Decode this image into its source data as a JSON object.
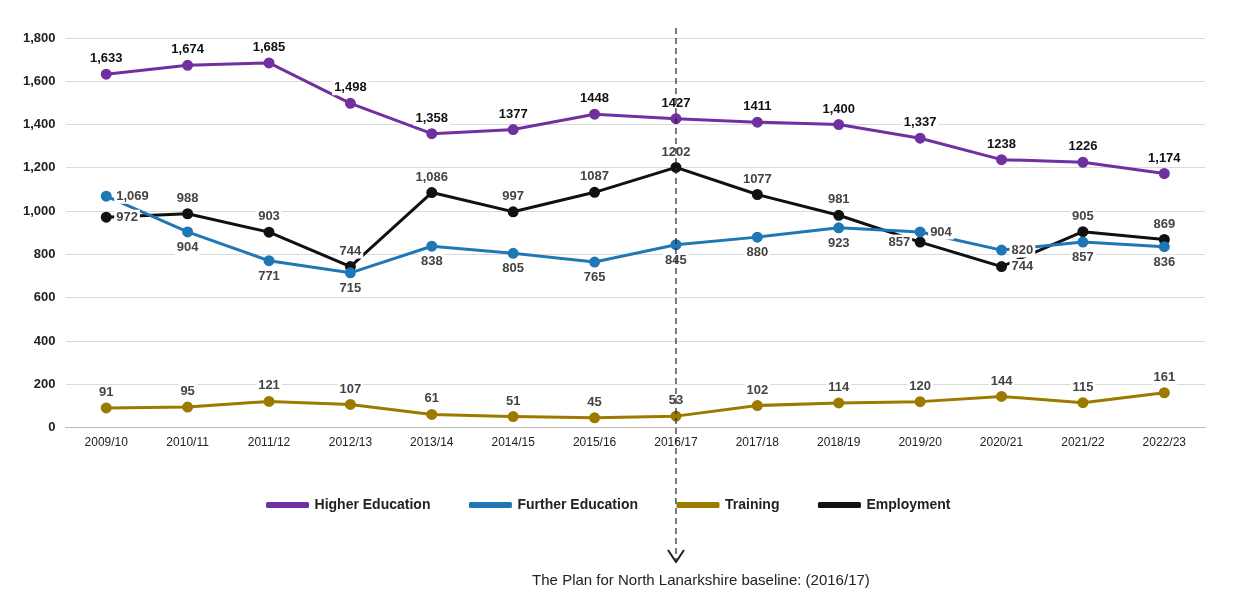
{
  "chart_data": {
    "type": "line",
    "categories": [
      "2009/10",
      "2010/11",
      "2011/12",
      "2012/13",
      "2013/14",
      "2014/15",
      "2015/16",
      "2016/17",
      "2017/18",
      "2018/19",
      "2019/20",
      "2020/21",
      "2021/22",
      "2022/23"
    ],
    "series": [
      {
        "name": "Higher Education",
        "color": "#7030a0",
        "values": [
          1633,
          1674,
          1685,
          1498,
          1358,
          1377,
          1448,
          1427,
          1411,
          1400,
          1337,
          1238,
          1226,
          1174
        ],
        "value_labels": [
          "1,633",
          "1,674",
          "1,685",
          "1,498",
          "1,358",
          "1377",
          "1448",
          "1427",
          "1411",
          "1,400",
          "1,337",
          "1238",
          "1226",
          "1,174"
        ]
      },
      {
        "name": "Further Education",
        "color": "#1f77b4",
        "values": [
          1069,
          904,
          771,
          715,
          838,
          805,
          765,
          845,
          880,
          923,
          904,
          820,
          857,
          836
        ],
        "value_labels": [
          "1,069",
          "904",
          "771",
          "715",
          "838",
          "805",
          "765",
          "845",
          "880",
          "923",
          "904",
          "820",
          "857",
          "836"
        ]
      },
      {
        "name": "Training",
        "color": "#9c7a00",
        "values": [
          91,
          95,
          121,
          107,
          61,
          51,
          45,
          53,
          102,
          114,
          120,
          144,
          115,
          161
        ],
        "value_labels": [
          "91",
          "95",
          "121",
          "107",
          "61",
          "51",
          "45",
          "53",
          "102",
          "114",
          "120",
          "144",
          "115",
          "161"
        ]
      },
      {
        "name": "Employment",
        "color": "#111111",
        "values": [
          972,
          988,
          903,
          744,
          1086,
          997,
          1087,
          1202,
          1077,
          981,
          857,
          744,
          905,
          869
        ],
        "value_labels": [
          "972",
          "988",
          "903",
          "744",
          "1,086",
          "997",
          "1087",
          "1202",
          "1077",
          "981",
          "857",
          "744",
          "905",
          "869"
        ]
      }
    ],
    "ylim": [
      0,
      1800
    ],
    "yticks": [
      {
        "value": 0,
        "label": "0"
      },
      {
        "value": 200,
        "label": "200"
      },
      {
        "value": 400,
        "label": "400"
      },
      {
        "value": 600,
        "label": "600"
      },
      {
        "value": 800,
        "label": "800"
      },
      {
        "value": 1000,
        "label": "1,000"
      },
      {
        "value": 1200,
        "label": "1,200"
      },
      {
        "value": 1400,
        "label": "1,400"
      },
      {
        "value": 1600,
        "label": "1,600"
      },
      {
        "value": 1800,
        "label": "1,800"
      }
    ],
    "grid": "y",
    "legend": "bottom",
    "marker": "circle",
    "line_style": "solid",
    "ref_lines": [
      {
        "axis": "x",
        "value": "2016/17",
        "label": "The Plan for North Lanarkshire baseline: (2016/17)",
        "line_style": "dashed",
        "color": "#222222"
      }
    ]
  }
}
